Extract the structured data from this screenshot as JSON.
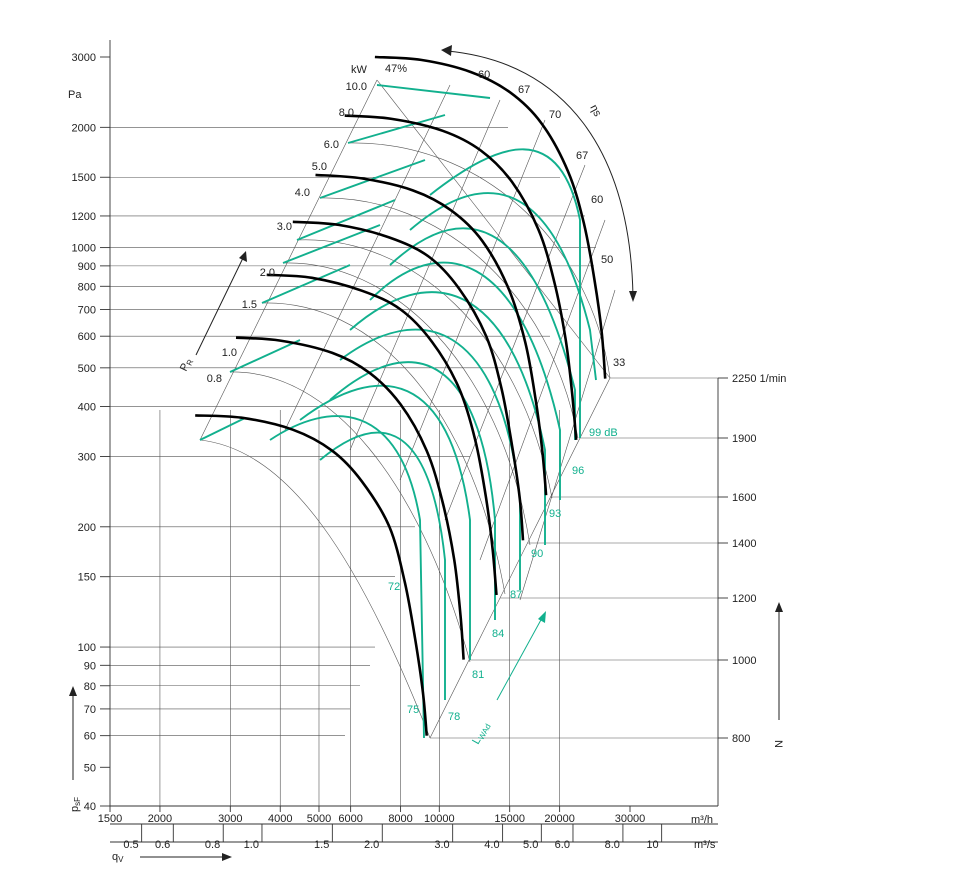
{
  "chart_data": {
    "type": "line",
    "title": "",
    "y_axis": {
      "unit": "Pa",
      "symbol": "pₛF",
      "scale": "log",
      "range": [
        40,
        3000
      ],
      "ticks": [
        3000,
        2000,
        1500,
        1200,
        1000,
        900,
        800,
        700,
        600,
        500,
        400,
        300,
        200,
        150,
        100,
        90,
        80,
        70,
        60,
        50,
        40
      ]
    },
    "x_axis_m3h": {
      "unit": "m³/h",
      "scale": "log",
      "ticks": [
        1500,
        2000,
        3000,
        4000,
        5000,
        6000,
        8000,
        10000,
        15000,
        20000,
        30000
      ]
    },
    "x_axis_m3s": {
      "unit": "m³/s",
      "symbol": "qᵥ",
      "ticks": [
        0.5,
        0.6,
        0.8,
        1.0,
        1.5,
        2.0,
        3.0,
        4.0,
        5.0,
        6.0,
        8.0,
        10
      ]
    },
    "speed_axis": {
      "symbol": "N",
      "unit": "1/min",
      "ticks": [
        2250,
        1900,
        1600,
        1400,
        1200,
        1000,
        800
      ]
    },
    "power_scale": {
      "unit": "kW",
      "symbol": "Pᵣ",
      "ticks": [
        "10.0",
        "8.0",
        "6.0",
        "5.0",
        "4.0",
        "3.0",
        "2.0",
        "1.5",
        "1.0",
        "0.8"
      ]
    },
    "efficiency_labels": [
      "47%",
      "60",
      "67",
      "70",
      "67",
      "60",
      "50",
      "33"
    ],
    "efficiency_symbol": "ηs",
    "sound_labels": [
      "99 dB",
      "96",
      "93",
      "90",
      "87",
      "84",
      "81",
      "78",
      "75",
      "72"
    ],
    "sound_symbol": "LWAd",
    "series": [
      {
        "speed": 2250,
        "q_m3h": [
          6900,
          9000,
          12000,
          15000,
          18000,
          21000,
          23000,
          24500,
          25500,
          26000
        ],
        "p_pa": [
          3000,
          2950,
          2750,
          2450,
          2050,
          1550,
          1150,
          820,
          610,
          470
        ]
      },
      {
        "speed": 1900,
        "q_m3h": [
          5800,
          7600,
          10200,
          12700,
          15200,
          17700,
          19400,
          20700,
          21500,
          22000
        ],
        "p_pa": [
          2140,
          2100,
          1960,
          1750,
          1460,
          1110,
          820,
          590,
          430,
          330
        ]
      },
      {
        "speed": 1600,
        "q_m3h": [
          4900,
          6400,
          8600,
          10700,
          12800,
          14900,
          16400,
          17400,
          18100,
          18500
        ],
        "p_pa": [
          1520,
          1490,
          1390,
          1240,
          1040,
          790,
          580,
          420,
          310,
          240
        ]
      },
      {
        "speed": 1400,
        "q_m3h": [
          4300,
          5600,
          7500,
          9400,
          11200,
          13100,
          14300,
          15200,
          15900,
          16200
        ],
        "p_pa": [
          1160,
          1140,
          1060,
          950,
          790,
          600,
          445,
          320,
          235,
          185
        ]
      },
      {
        "speed": 1200,
        "q_m3h": [
          3700,
          4800,
          6400,
          8000,
          9600,
          11200,
          12300,
          13100,
          13600,
          13900
        ],
        "p_pa": [
          855,
          840,
          780,
          700,
          580,
          445,
          330,
          235,
          175,
          135
        ]
      },
      {
        "speed": 1000,
        "q_m3h": [
          3100,
          4000,
          5400,
          6700,
          8000,
          9300,
          10200,
          10900,
          11300,
          11500
        ],
        "p_pa": [
          595,
          585,
          545,
          485,
          405,
          310,
          230,
          165,
          120,
          93
        ]
      },
      {
        "speed": 800,
        "q_m3h": [
          2450,
          3200,
          4300,
          5400,
          6400,
          7500,
          8200,
          8700,
          9100,
          9300
        ],
        "p_pa": [
          380,
          375,
          350,
          310,
          260,
          200,
          145,
          105,
          77,
          60
        ]
      }
    ]
  }
}
